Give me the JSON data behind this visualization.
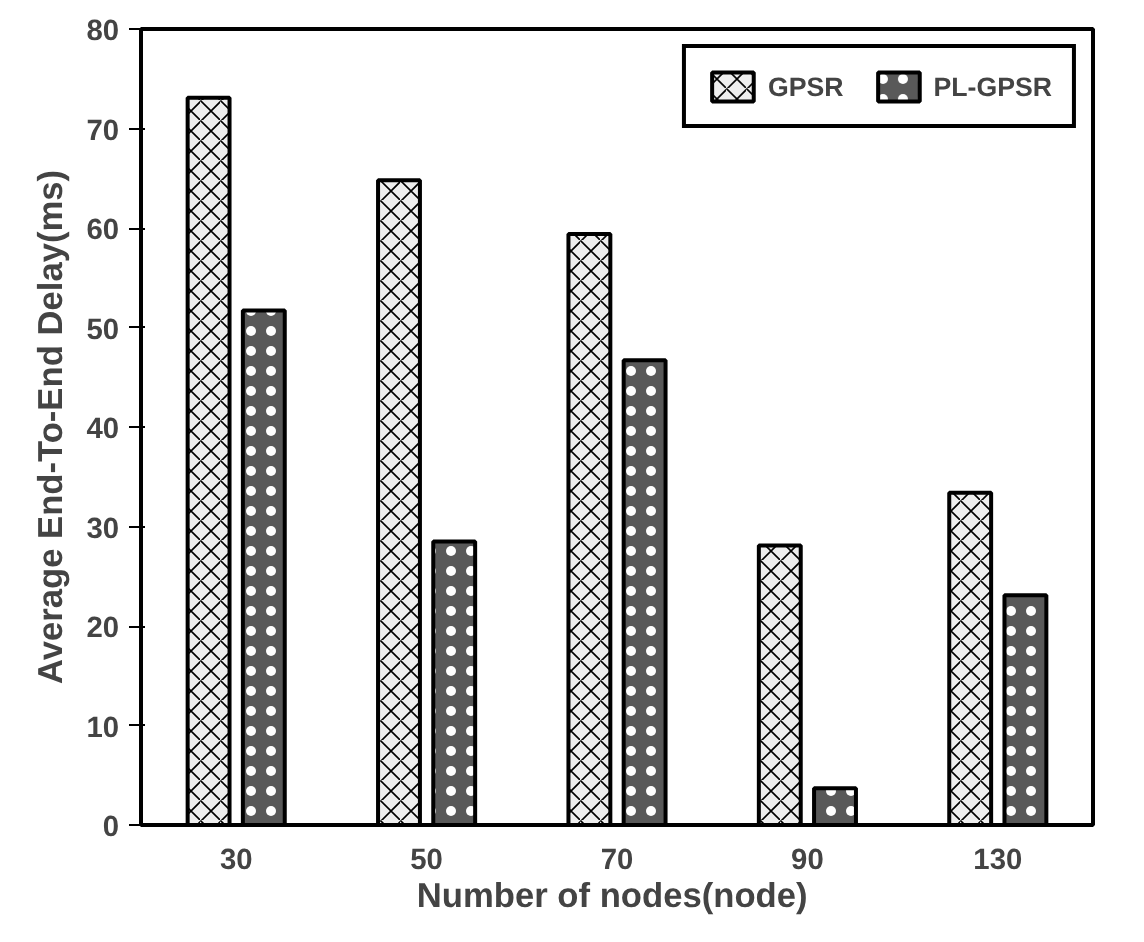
{
  "chart_data": {
    "type": "bar",
    "xlabel": "Number of  nodes(node)",
    "ylabel": "Average End-To-End Delay(ms)",
    "categories": [
      "30",
      "50",
      "70",
      "90",
      "130"
    ],
    "series": [
      {
        "name": "GPSR",
        "color": "#eeeeee",
        "values": [
          73.1,
          64.8,
          59.4,
          28.1,
          33.4
        ]
      },
      {
        "name": "PL-GPSR",
        "color": "#595959",
        "values": [
          51.7,
          28.5,
          46.7,
          3.7,
          23.1
        ]
      }
    ],
    "ylim": [
      0,
      80
    ],
    "yticks": [
      0,
      10,
      20,
      30,
      40,
      50,
      60,
      70,
      80
    ],
    "grid": false,
    "legend": "top right"
  }
}
